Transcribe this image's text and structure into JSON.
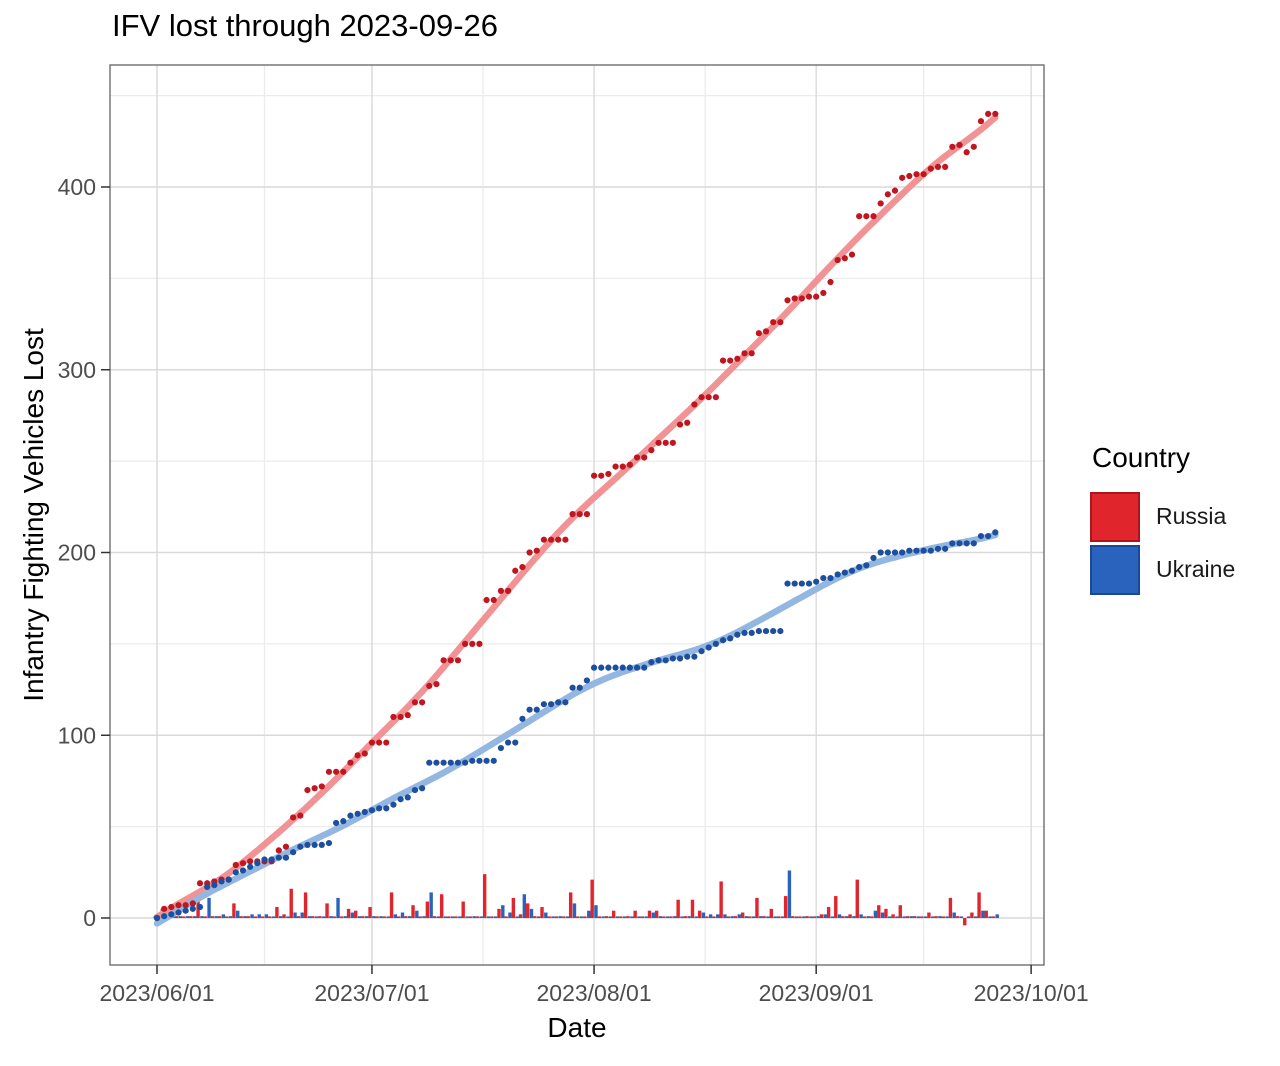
{
  "title": "IFV lost through 2023-09-26",
  "chart_data": {
    "type": "scatter",
    "subtype": "cumulative points + loess smooth lines + daily bars",
    "title": "IFV lost through 2023-09-26",
    "xlabel": "Date",
    "ylabel": "Infantry Fighting Vehicles Lost",
    "x_tick_labels": [
      "2023/06/01",
      "2023/07/01",
      "2023/08/01",
      "2023/09/01",
      "2023/10/01"
    ],
    "x_tick_days": [
      0,
      30,
      61,
      92,
      122
    ],
    "x_minor_days": [
      15,
      45.5,
      76.5,
      107
    ],
    "y_ticks": [
      0,
      100,
      200,
      300,
      400
    ],
    "y_minor_ticks": [
      50,
      150,
      250,
      350,
      450
    ],
    "start_date": "2023-06-01",
    "end_date": "2023-09-26",
    "grid": true,
    "legend_position": "right",
    "legend": {
      "title": "Country",
      "entries": [
        {
          "label": "Russia",
          "color": "#e0252d",
          "border": "#ad141c"
        },
        {
          "label": "Ukraine",
          "color": "#2a63bd",
          "border": "#1c4794"
        }
      ]
    },
    "series": [
      {
        "name": "Russia",
        "dot_color": "#c0161f",
        "line_color": "#f19395",
        "bar_color": "#e0252d",
        "cumulative": [
          0,
          5,
          6,
          7,
          7,
          8,
          19,
          19,
          20,
          21,
          21,
          29,
          30,
          31,
          31,
          31,
          31,
          37,
          39,
          55,
          56,
          70,
          71,
          72,
          80,
          80,
          80,
          85,
          89,
          90,
          96,
          96,
          96,
          110,
          110,
          111,
          118,
          118,
          127,
          128,
          141,
          141,
          141,
          150,
          150,
          150,
          174,
          174,
          179,
          179,
          190,
          192,
          200,
          201,
          207,
          207,
          207,
          207,
          221,
          221,
          221,
          242,
          242,
          243,
          247,
          247,
          248,
          252,
          252,
          256,
          260,
          260,
          260,
          270,
          271,
          281,
          285,
          285,
          285,
          305,
          305,
          306,
          309,
          309,
          320,
          321,
          326,
          326,
          338,
          339,
          339,
          340,
          340,
          342,
          348,
          360,
          361,
          363,
          384,
          384,
          384,
          391,
          396,
          398,
          405,
          406,
          407,
          407,
          410,
          411,
          411,
          422,
          423,
          419,
          422,
          436,
          440,
          440
        ]
      },
      {
        "name": "Ukraine",
        "dot_color": "#1d4f9e",
        "line_color": "#93b7e0",
        "bar_color": "#2a63bd",
        "cumulative": [
          0,
          1,
          2,
          3,
          4,
          5,
          6,
          17,
          18,
          20,
          21,
          25,
          26,
          28,
          30,
          32,
          32,
          33,
          33,
          36,
          39,
          40,
          40,
          40,
          41,
          52,
          53,
          56,
          57,
          58,
          59,
          60,
          60,
          62,
          65,
          66,
          70,
          71,
          85,
          85,
          85,
          85,
          85,
          85,
          86,
          86,
          86,
          86,
          93,
          96,
          96,
          109,
          114,
          114,
          117,
          117,
          118,
          118,
          126,
          126,
          130,
          137,
          137,
          137,
          137,
          137,
          137,
          137,
          137,
          140,
          141,
          141,
          142,
          142,
          143,
          143,
          146,
          148,
          150,
          152,
          153,
          155,
          156,
          156,
          157,
          157,
          157,
          157,
          183,
          183,
          183,
          183,
          184,
          186,
          186,
          188,
          189,
          190,
          192,
          193,
          197,
          200,
          200,
          200,
          200,
          201,
          201,
          201,
          201,
          202,
          202,
          205,
          205,
          205,
          205,
          209,
          209,
          211
        ]
      }
    ]
  }
}
